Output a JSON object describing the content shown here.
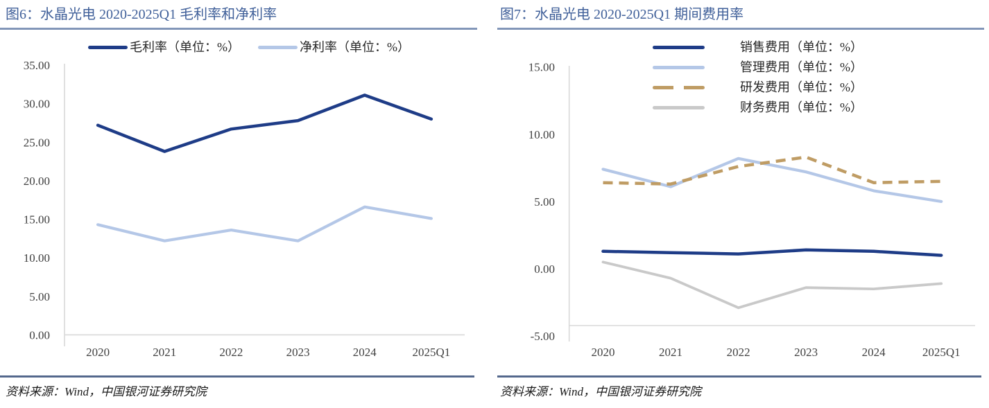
{
  "colors": {
    "title": "#3f5f99",
    "rule_top": "#8296b8",
    "rule_bottom": "#54688c",
    "axis_line": "#d9d9d9",
    "axis_text": "#404040",
    "series_navy": "#1e3c87",
    "series_light_blue": "#b4c7e7",
    "series_tan": "#bf9c64",
    "series_gray": "#c9c9c9"
  },
  "chart_data": [
    {
      "type": "line",
      "title": "图6：水晶光电 2020-2025Q1 毛利率和净利率",
      "source": "资料来源：Wind，中国银河证券研究院",
      "xlabel": "",
      "ylabel": "",
      "categories": [
        "2020",
        "2021",
        "2022",
        "2023",
        "2024",
        "2025Q1"
      ],
      "ylim": [
        0,
        35
      ],
      "yticks": [
        35,
        30,
        25,
        20,
        15,
        10,
        5,
        0
      ],
      "grid": false,
      "legend_position": "top",
      "series": [
        {
          "name": "毛利率（单位：%）",
          "color": "#1e3c87",
          "dash": false,
          "width": 4.5,
          "values": [
            27.2,
            23.8,
            26.7,
            27.8,
            31.1,
            28.0
          ]
        },
        {
          "name": "净利率（单位：%）",
          "color": "#b4c7e7",
          "dash": false,
          "width": 4.2,
          "values": [
            14.3,
            12.2,
            13.6,
            12.2,
            16.6,
            15.1
          ]
        }
      ]
    },
    {
      "type": "line",
      "title": "图7：水晶光电 2020-2025Q1 期间费用率",
      "source": "资料来源：Wind，中国银河证券研究院",
      "xlabel": "",
      "ylabel": "",
      "categories": [
        "2020",
        "2021",
        "2022",
        "2023",
        "2024",
        "2025Q1"
      ],
      "ylim": [
        -5,
        15
      ],
      "yticks": [
        15,
        10,
        5,
        0,
        -5
      ],
      "grid": false,
      "legend_position": "top",
      "series": [
        {
          "name": "销售费用（单位：%）",
          "color": "#1e3c87",
          "dash": false,
          "width": 4.5,
          "values": [
            1.3,
            1.2,
            1.1,
            1.4,
            1.3,
            1.0
          ]
        },
        {
          "name": "管理费用（单位：%）",
          "color": "#b4c7e7",
          "dash": false,
          "width": 4.2,
          "values": [
            7.4,
            6.1,
            8.2,
            7.2,
            5.8,
            5.0
          ]
        },
        {
          "name": "研发费用（单位：%）",
          "color": "#bf9c64",
          "dash": true,
          "width": 4.5,
          "values": [
            6.4,
            6.3,
            7.6,
            8.3,
            6.4,
            6.5
          ]
        },
        {
          "name": "财务费用（单位：%）",
          "color": "#c9c9c9",
          "dash": false,
          "width": 3.8,
          "values": [
            0.5,
            -0.7,
            -2.9,
            -1.4,
            -1.5,
            -1.1
          ]
        }
      ]
    }
  ]
}
